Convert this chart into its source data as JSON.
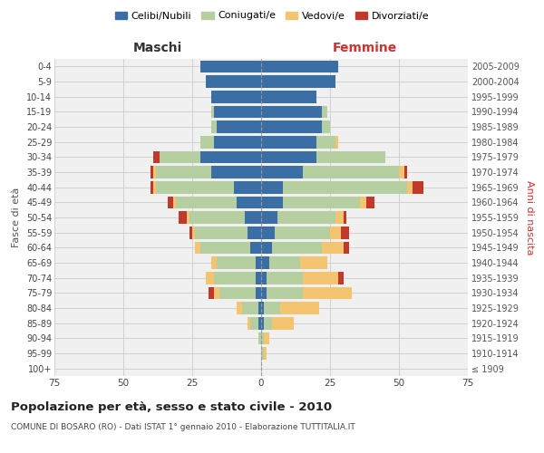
{
  "age_groups": [
    "100+",
    "95-99",
    "90-94",
    "85-89",
    "80-84",
    "75-79",
    "70-74",
    "65-69",
    "60-64",
    "55-59",
    "50-54",
    "45-49",
    "40-44",
    "35-39",
    "30-34",
    "25-29",
    "20-24",
    "15-19",
    "10-14",
    "5-9",
    "0-4"
  ],
  "birth_years": [
    "≤ 1909",
    "1910-1914",
    "1915-1919",
    "1920-1924",
    "1925-1929",
    "1930-1934",
    "1935-1939",
    "1940-1944",
    "1945-1949",
    "1950-1954",
    "1955-1959",
    "1960-1964",
    "1965-1969",
    "1970-1974",
    "1975-1979",
    "1980-1984",
    "1985-1989",
    "1990-1994",
    "1995-1999",
    "2000-2004",
    "2005-2009"
  ],
  "maschi": {
    "celibi": [
      0,
      0,
      0,
      1,
      1,
      2,
      2,
      2,
      4,
      5,
      6,
      9,
      10,
      18,
      22,
      17,
      16,
      17,
      18,
      20,
      22
    ],
    "coniugati": [
      0,
      0,
      1,
      3,
      6,
      13,
      15,
      14,
      18,
      19,
      20,
      22,
      28,
      20,
      15,
      5,
      2,
      1,
      0,
      0,
      0
    ],
    "vedovi": [
      0,
      0,
      0,
      1,
      2,
      2,
      3,
      2,
      2,
      1,
      1,
      1,
      1,
      1,
      0,
      0,
      0,
      0,
      0,
      0,
      0
    ],
    "divorziati": [
      0,
      0,
      0,
      0,
      0,
      2,
      0,
      0,
      0,
      1,
      3,
      2,
      1,
      1,
      2,
      0,
      0,
      0,
      0,
      0,
      0
    ]
  },
  "femmine": {
    "nubili": [
      0,
      0,
      0,
      1,
      1,
      2,
      2,
      3,
      4,
      5,
      6,
      8,
      8,
      15,
      20,
      20,
      22,
      22,
      20,
      27,
      28
    ],
    "coniugate": [
      0,
      1,
      1,
      3,
      6,
      13,
      13,
      11,
      18,
      20,
      21,
      28,
      45,
      35,
      25,
      7,
      3,
      2,
      0,
      0,
      0
    ],
    "vedove": [
      0,
      1,
      2,
      8,
      14,
      18,
      13,
      10,
      8,
      4,
      3,
      2,
      2,
      2,
      0,
      1,
      0,
      0,
      0,
      0,
      0
    ],
    "divorziate": [
      0,
      0,
      0,
      0,
      0,
      0,
      2,
      0,
      2,
      3,
      1,
      3,
      4,
      1,
      0,
      0,
      0,
      0,
      0,
      0,
      0
    ]
  },
  "colors": {
    "celibi": "#3a6ea5",
    "coniugati": "#b5cfa0",
    "vedovi": "#f4c471",
    "divorziati": "#c0392b"
  },
  "xlim": 75,
  "title": "Popolazione per età, sesso e stato civile - 2010",
  "subtitle": "COMUNE DI BOSARO (RO) - Dati ISTAT 1° gennaio 2010 - Elaborazione TUTTITALIA.IT",
  "ylabel_left": "Fasce di età",
  "ylabel_right": "Anni di nascita",
  "label_maschi": "Maschi",
  "label_femmine": "Femmine",
  "legend_labels": [
    "Celibi/Nubili",
    "Coniugati/e",
    "Vedovi/e",
    "Divorziati/e"
  ],
  "bg_color": "#ffffff",
  "ax_bg_color": "#f0f0f0",
  "grid_color": "#cccccc"
}
